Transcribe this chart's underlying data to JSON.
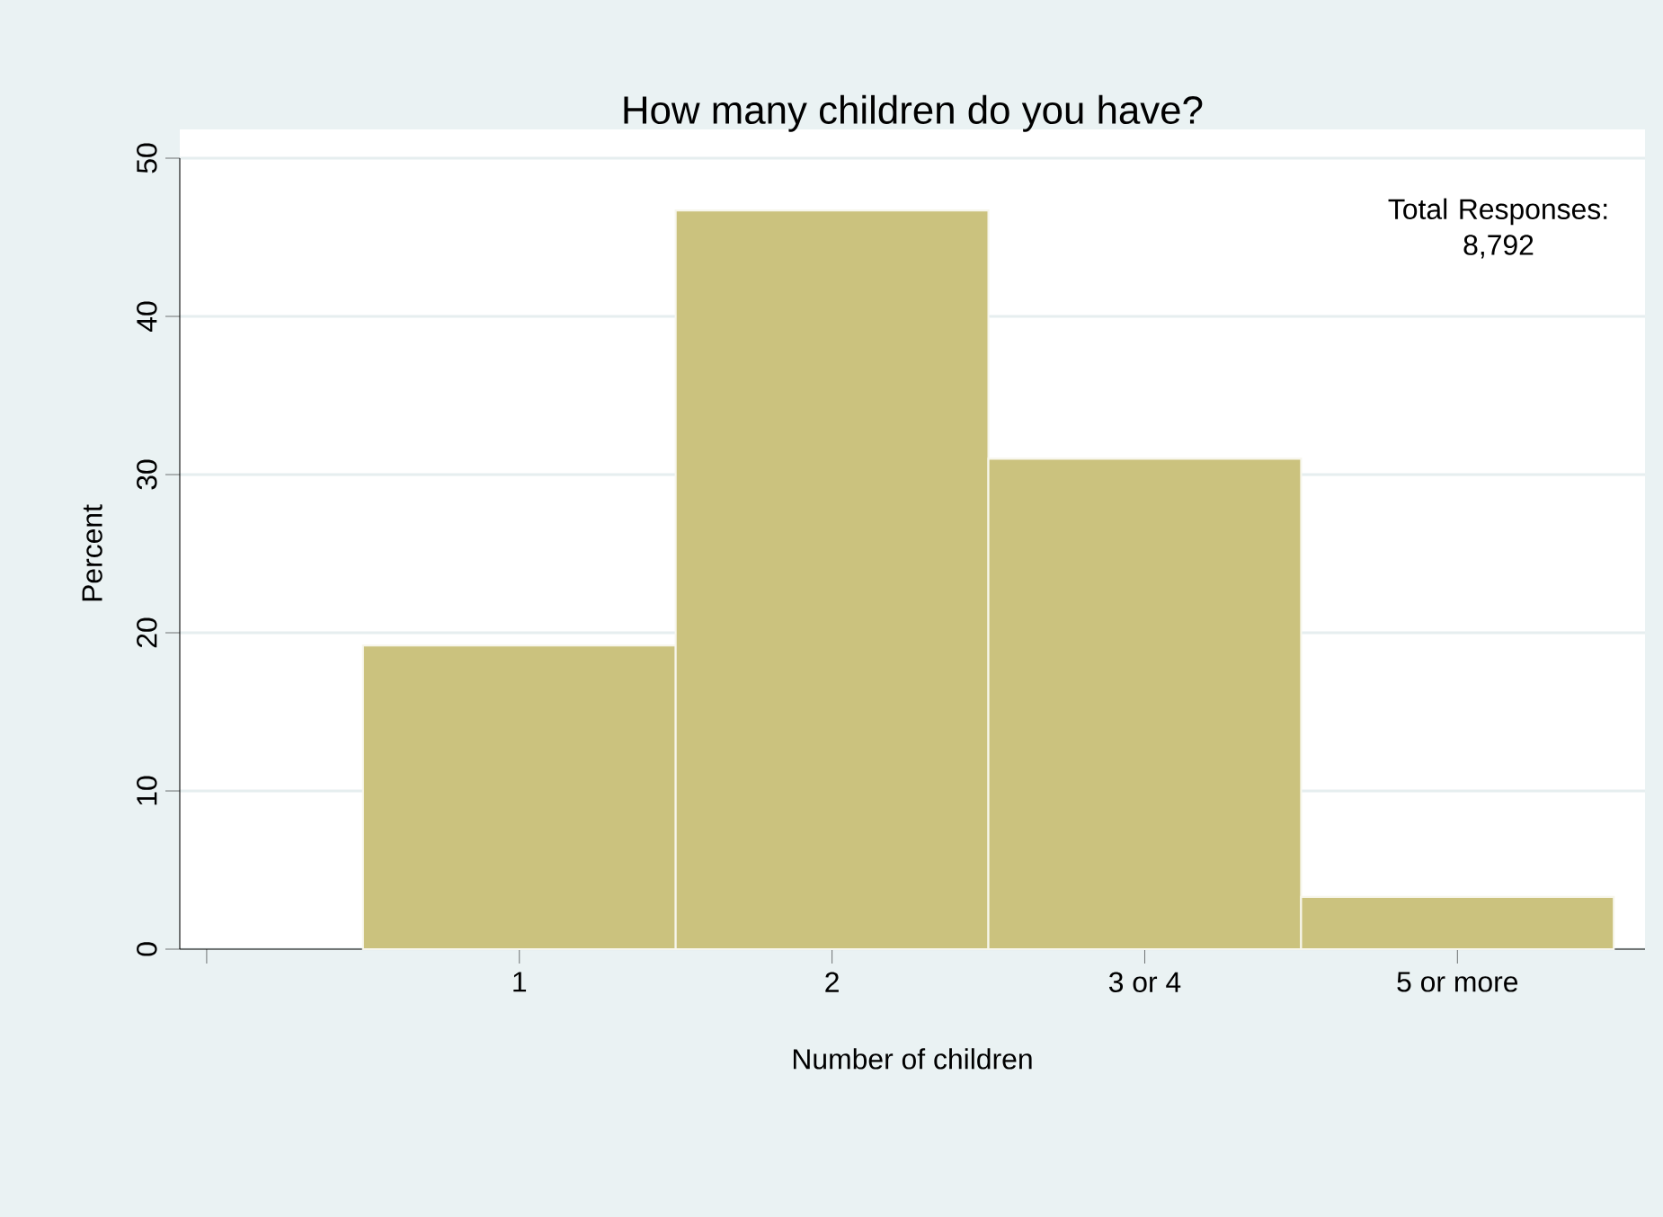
{
  "chart_data": {
    "type": "bar",
    "title": "How many children do you have?",
    "xlabel": "Number of children",
    "ylabel": "Percent",
    "categories": [
      null,
      "1",
      "2",
      "3 or 4",
      "5 or more"
    ],
    "values": [
      null,
      19.2,
      46.7,
      31.0,
      3.3
    ],
    "color": "#cbc27e",
    "ylim": [
      0,
      50
    ],
    "yticks": [
      0,
      10,
      20,
      30,
      40,
      50
    ],
    "grid": "y",
    "annotations": [
      "Total Responses: 8,792"
    ]
  }
}
